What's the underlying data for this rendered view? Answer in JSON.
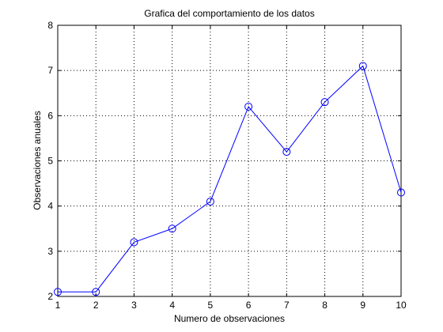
{
  "chart_data": {
    "type": "line",
    "title": "Grafica del comportamiento de los datos",
    "xlabel": "Numero de observaciones",
    "ylabel": "Observaciones anuales",
    "x": [
      1,
      2,
      3,
      4,
      5,
      6,
      7,
      8,
      9,
      10
    ],
    "series": [
      {
        "values": [
          2.1,
          2.1,
          3.2,
          3.5,
          4.1,
          6.2,
          5.2,
          6.3,
          7.1,
          4.3
        ],
        "color": "#0000ff",
        "marker": "circle",
        "line": "solid"
      }
    ],
    "xlim": [
      1,
      10
    ],
    "ylim": [
      2,
      8
    ],
    "xticks": [
      "1",
      "2",
      "3",
      "4",
      "5",
      "6",
      "7",
      "8",
      "9",
      "10"
    ],
    "yticks": [
      "2",
      "3",
      "4",
      "5",
      "6",
      "7",
      "8"
    ],
    "grid": true,
    "grid_style": "dotted"
  }
}
